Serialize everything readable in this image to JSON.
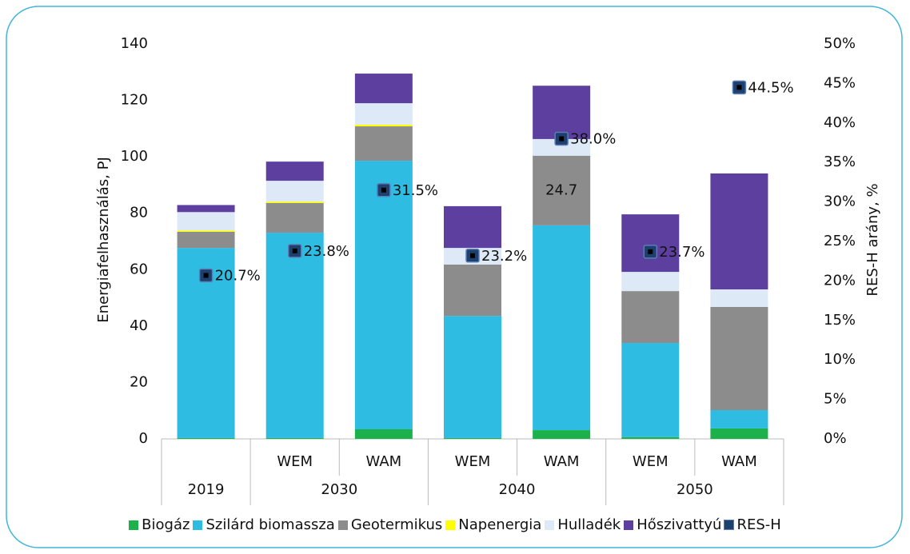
{
  "chart_data": {
    "type": "bar",
    "stacked": true,
    "y_label": "Energiafelhasználás, PJ",
    "y2_label": "RES-H arány, %",
    "categories": [
      null,
      "WEM",
      "WAM",
      "WEM",
      "WAM",
      "WEM",
      "WAM"
    ],
    "groups": [
      {
        "label": "2019",
        "span": 1
      },
      {
        "label": "2030",
        "span": 2
      },
      {
        "label": "2040",
        "span": 2
      },
      {
        "label": "2050",
        "span": 2
      }
    ],
    "ylim": [
      0,
      140
    ],
    "yticks": [
      0,
      20,
      40,
      60,
      80,
      100,
      120,
      140
    ],
    "y2lim": [
      0,
      50
    ],
    "y2ticks": [
      {
        "value": 0,
        "label": "0%"
      },
      {
        "value": 5,
        "label": "5%"
      },
      {
        "value": 10,
        "label": "10%"
      },
      {
        "value": 15,
        "label": "15%"
      },
      {
        "value": 20,
        "label": "20%"
      },
      {
        "value": 25,
        "label": "25%"
      },
      {
        "value": 30,
        "label": "30%"
      },
      {
        "value": 35,
        "label": "35%"
      },
      {
        "value": 40,
        "label": "40%"
      },
      {
        "value": 45,
        "label": "45%"
      },
      {
        "value": 50,
        "label": "50%"
      }
    ],
    "legend": "bottom",
    "series": [
      {
        "name": "Biogáz",
        "color": "#1db14b",
        "values": [
          0.3,
          0.3,
          3.4,
          0.3,
          3.1,
          0.6,
          3.7
        ]
      },
      {
        "name": "Szilárd biomassza",
        "color": "#2fbce2",
        "values": [
          67.4,
          72.8,
          95.2,
          43.3,
          72.6,
          33.4,
          6.5
        ]
      },
      {
        "name": "Geotermikus",
        "color": "#8c8c8c",
        "values": [
          5.7,
          10.5,
          12.2,
          18.2,
          24.7,
          18.4,
          36.6
        ],
        "value_labels": [
          null,
          null,
          null,
          null,
          "24.7",
          null,
          null
        ]
      },
      {
        "name": "Napenergia",
        "color": "#ffff00",
        "values": [
          0.5,
          0.5,
          0.6,
          0,
          0,
          0,
          0
        ]
      },
      {
        "name": "Hulladék",
        "color": "#dde9f7",
        "values": [
          6.5,
          7.4,
          7.6,
          5.9,
          5.9,
          6.8,
          6.2
        ]
      },
      {
        "name": "Hőszivattyú",
        "color": "#5c3f9e",
        "values": [
          2.5,
          6.8,
          10.5,
          14.8,
          18.9,
          20.4,
          41.1
        ]
      },
      {
        "name": "RES-H",
        "color": "#1f3f6e",
        "type": "scatter",
        "axis": "y2",
        "values": [
          20.7,
          23.8,
          31.5,
          23.2,
          38.0,
          23.7,
          44.5
        ],
        "value_labels": [
          "20.7%",
          "23.8%",
          "31.5%",
          "23.2%",
          "38.0%",
          "23.7%",
          "44.5%"
        ]
      }
    ]
  }
}
